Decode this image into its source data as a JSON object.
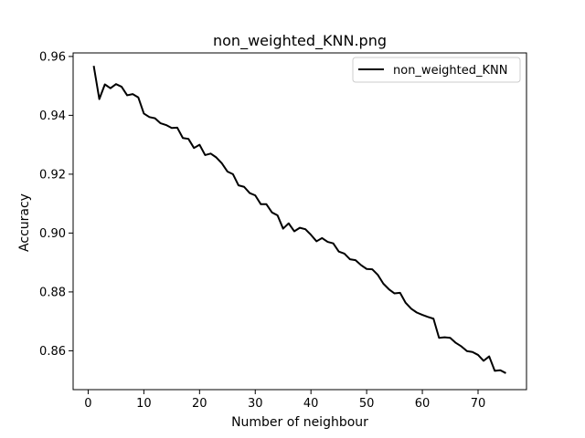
{
  "chart_data": {
    "type": "line",
    "title": "non_weighted_KNN.png",
    "xlabel": "Number of neighbour",
    "ylabel": "Accuracy",
    "xlim": [
      -2.7,
      78.7
    ],
    "ylim": [
      0.8468,
      0.9612
    ],
    "xticks": [
      0,
      10,
      20,
      30,
      40,
      50,
      60,
      70
    ],
    "xtick_labels": [
      "0",
      "10",
      "20",
      "30",
      "40",
      "50",
      "60",
      "70"
    ],
    "yticks": [
      0.86,
      0.88,
      0.9,
      0.92,
      0.94,
      0.96
    ],
    "ytick_labels": [
      "0.86",
      "0.88",
      "0.90",
      "0.92",
      "0.94",
      "0.96"
    ],
    "grid": false,
    "legend_position": "upper right",
    "series": [
      {
        "name": "non_weighted_KNN",
        "color": "#000000",
        "x": [
          1,
          2,
          3,
          4,
          5,
          6,
          7,
          8,
          9,
          10,
          11,
          12,
          13,
          14,
          15,
          16,
          17,
          18,
          19,
          20,
          21,
          22,
          23,
          24,
          25,
          26,
          27,
          28,
          29,
          30,
          31,
          32,
          33,
          34,
          35,
          36,
          37,
          38,
          39,
          40,
          41,
          42,
          43,
          44,
          45,
          46,
          47,
          48,
          49,
          50,
          51,
          52,
          53,
          54,
          55,
          56,
          57,
          58,
          59,
          60,
          61,
          62,
          63,
          64,
          65,
          66,
          67,
          68,
          69,
          70,
          71,
          72,
          73,
          74,
          75
        ],
        "y": [
          0.9568,
          0.9455,
          0.9505,
          0.9492,
          0.9506,
          0.9497,
          0.9468,
          0.9472,
          0.9461,
          0.9406,
          0.9394,
          0.939,
          0.9373,
          0.9367,
          0.9357,
          0.9358,
          0.9323,
          0.932,
          0.9289,
          0.93,
          0.9265,
          0.927,
          0.9257,
          0.9237,
          0.9209,
          0.92,
          0.9162,
          0.9157,
          0.9136,
          0.9128,
          0.9098,
          0.9098,
          0.907,
          0.906,
          0.9015,
          0.9033,
          0.9006,
          0.9018,
          0.9013,
          0.8994,
          0.8972,
          0.8983,
          0.897,
          0.8965,
          0.8937,
          0.893,
          0.8911,
          0.8908,
          0.8891,
          0.8878,
          0.8877,
          0.8858,
          0.8828,
          0.8809,
          0.8795,
          0.8797,
          0.8763,
          0.8743,
          0.873,
          0.8722,
          0.8715,
          0.8709,
          0.8644,
          0.8646,
          0.8644,
          0.8627,
          0.8615,
          0.8599,
          0.8596,
          0.8586,
          0.8566,
          0.8581,
          0.8532,
          0.8534,
          0.8524
        ]
      }
    ]
  }
}
